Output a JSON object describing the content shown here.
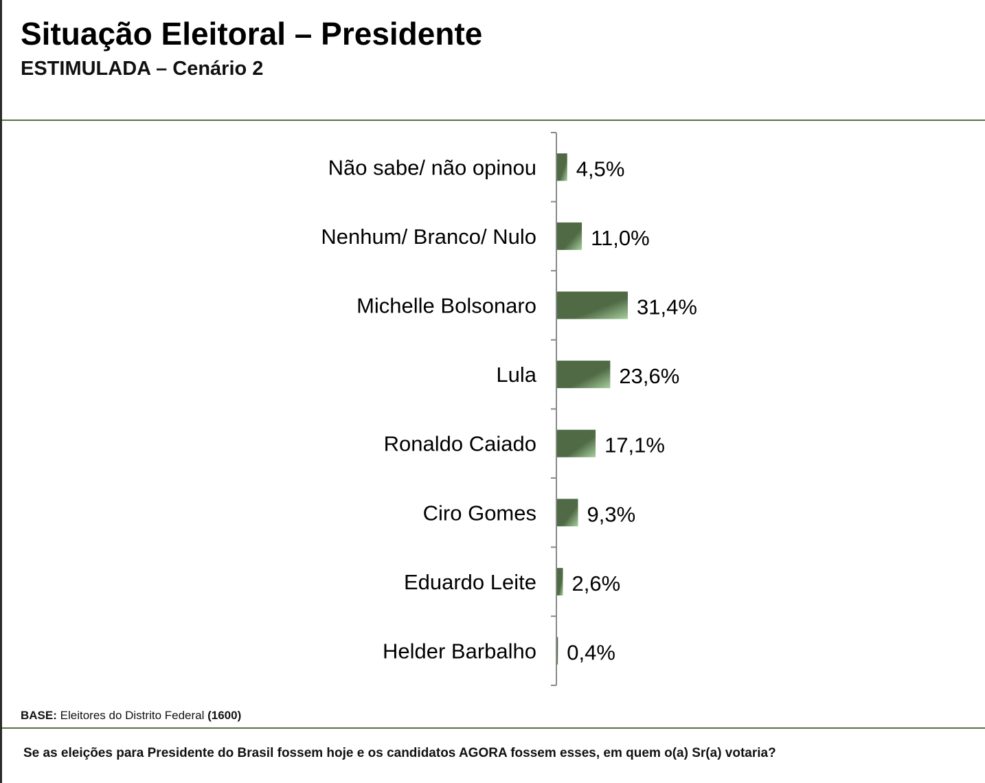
{
  "header": {
    "title": "Situação Eleitoral – Presidente",
    "subtitle": "ESTIMULADA – Cenário 2"
  },
  "footer": {
    "base_label": "BASE:",
    "base_text": " Eleitores do Distrito Federal ",
    "base_count": "(1600)",
    "question": "Se as eleições para Presidente do Brasil fossem hoje e os candidatos AGORA fossem esses, em quem o(a) Sr(a) votaria?"
  },
  "chart_data": {
    "type": "bar",
    "orientation": "horizontal",
    "categories": [
      "Não sabe/ não opinou",
      "Nenhum/ Branco/ Nulo",
      "Michelle Bolsonaro",
      "Lula",
      "Ronaldo Caiado",
      "Ciro Gomes",
      "Eduardo Leite",
      "Helder Barbalho"
    ],
    "values": [
      4.5,
      11.0,
      31.4,
      23.6,
      17.1,
      9.3,
      2.6,
      0.4
    ],
    "data_labels": [
      "4,5%",
      "11,0%",
      "31,4%",
      "23,6%",
      "17,1%",
      "9,3%",
      "2,6%",
      "0,4%"
    ],
    "bar_color": "#4f6a45",
    "bar_highlight": "#a9cf9f",
    "grid": false
  }
}
